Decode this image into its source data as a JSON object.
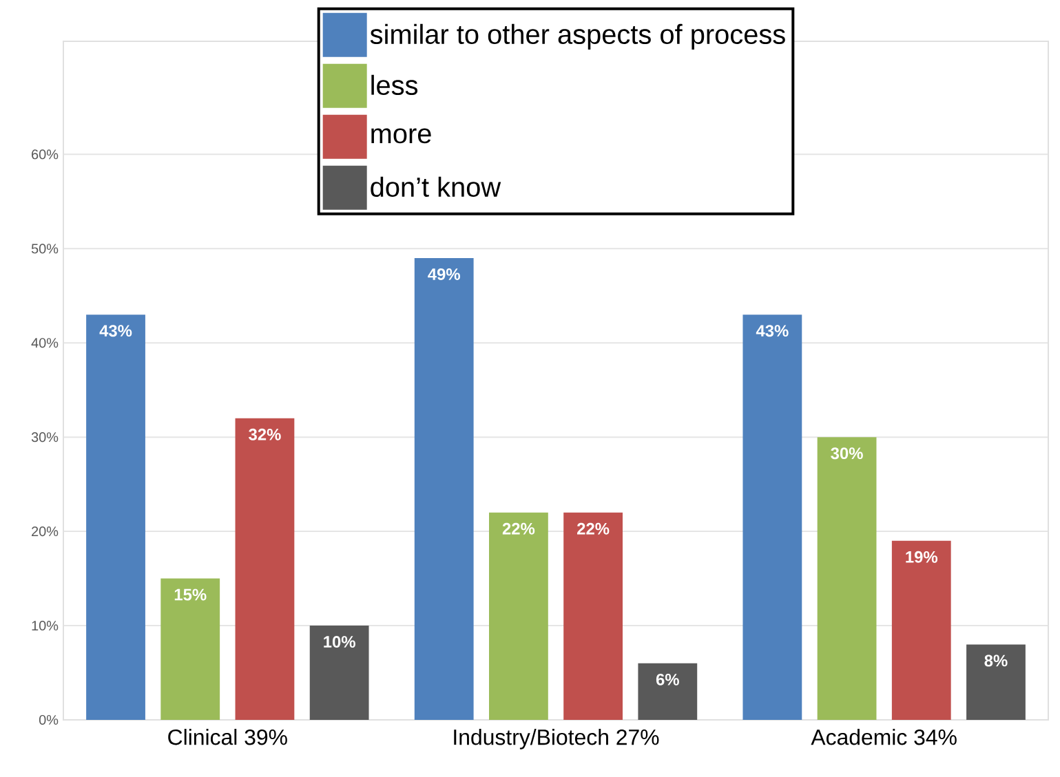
{
  "chart_data": {
    "type": "bar",
    "categories": [
      "Clinical 39%",
      "Industry/Biotech 27%",
      "Academic 34%"
    ],
    "series": [
      {
        "name": "similar to other aspects of process",
        "color": "#4f81bd",
        "values": [
          43,
          49,
          43
        ],
        "value_labels": [
          "43%",
          "49%",
          "43%"
        ]
      },
      {
        "name": "less",
        "color": "#9bbb59",
        "values": [
          15,
          22,
          30
        ],
        "value_labels": [
          "15%",
          "22%",
          "30%"
        ]
      },
      {
        "name": "more",
        "color": "#c0504d",
        "values": [
          32,
          22,
          19
        ],
        "value_labels": [
          "32%",
          "22%",
          "19%"
        ]
      },
      {
        "name": "don’t know",
        "color": "#595959",
        "values": [
          10,
          6,
          8
        ],
        "value_labels": [
          "10%",
          "6%",
          "8%"
        ]
      }
    ],
    "ylim": [
      0,
      72
    ],
    "yticks": [
      {
        "value": 0,
        "label": "0%"
      },
      {
        "value": 10,
        "label": "10%"
      },
      {
        "value": 20,
        "label": "20%"
      },
      {
        "value": 30,
        "label": "30%"
      },
      {
        "value": 40,
        "label": "40%"
      },
      {
        "value": 50,
        "label": "50%"
      },
      {
        "value": 60,
        "label": "60%"
      }
    ],
    "grid": "y",
    "legend": "top"
  }
}
